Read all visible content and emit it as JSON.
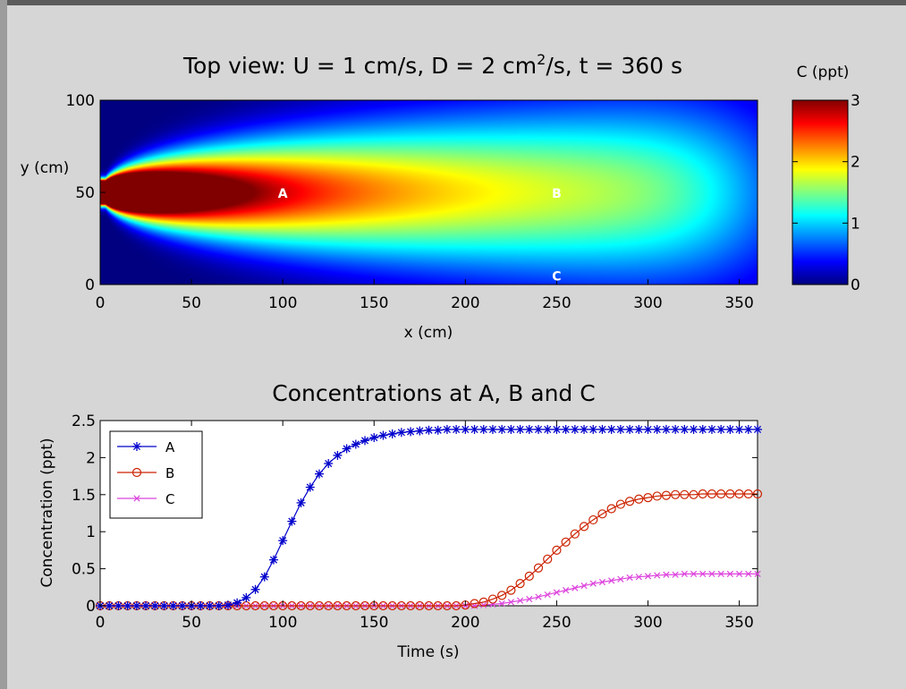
{
  "window": {
    "background": "#d6d6d6"
  },
  "chart_data": [
    {
      "type": "heatmap",
      "title_parts": {
        "main": "Top view: U = 1 cm/s, D = 2 cm",
        "sup": "2",
        "rest": "/s, t = 360 s"
      },
      "xlabel": "x (cm)",
      "ylabel": "y (cm)",
      "xlim": [
        0,
        360
      ],
      "ylim": [
        0,
        100
      ],
      "xticks": [
        0,
        50,
        100,
        150,
        200,
        250,
        300,
        350
      ],
      "yticks": [
        0,
        50,
        100
      ],
      "colormap": "jet",
      "clim": [
        0,
        3
      ],
      "model": {
        "U": 1,
        "D": 2,
        "t": 360,
        "source_y": 50,
        "units": "cm, s"
      },
      "colorbar": {
        "label": "C (ppt)",
        "ticks": [
          0,
          1,
          2,
          3
        ]
      },
      "points": [
        {
          "name": "A",
          "x": 100,
          "y": 50,
          "color": "#ffffff"
        },
        {
          "name": "B",
          "x": 250,
          "y": 50,
          "color": "#ffffff"
        },
        {
          "name": "C",
          "x": 250,
          "y": 5,
          "color": "#ffffff"
        }
      ]
    },
    {
      "type": "line",
      "title": "Concentrations at A, B and C",
      "xlabel": "Time (s)",
      "ylabel": "Concentration (ppt)",
      "xlim": [
        0,
        360
      ],
      "ylim": [
        0,
        2.5
      ],
      "xticks": [
        0,
        50,
        100,
        150,
        200,
        250,
        300,
        350
      ],
      "yticks": [
        0,
        0.5,
        1,
        1.5,
        2,
        2.5
      ],
      "grid": false,
      "legend": "top-left",
      "sample_interval": 5,
      "series": [
        {
          "name": "A",
          "color": "#0000cc",
          "marker": "asterisk",
          "values": [
            0,
            0,
            0,
            0,
            0,
            0,
            0,
            0,
            0,
            0,
            0,
            0,
            0,
            0,
            0.01,
            0.04,
            0.11,
            0.22,
            0.39,
            0.62,
            0.88,
            1.14,
            1.39,
            1.6,
            1.78,
            1.92,
            2.03,
            2.12,
            2.18,
            2.23,
            2.27,
            2.3,
            2.32,
            2.34,
            2.35,
            2.36,
            2.37,
            2.37,
            2.38,
            2.38,
            2.38,
            2.38,
            2.38,
            2.38,
            2.38,
            2.38,
            2.38,
            2.38,
            2.38,
            2.38,
            2.38,
            2.38,
            2.38,
            2.38,
            2.38,
            2.38,
            2.38,
            2.38,
            2.38,
            2.38,
            2.38,
            2.38,
            2.38,
            2.38,
            2.38,
            2.38,
            2.38,
            2.38,
            2.38,
            2.38,
            2.38,
            2.38,
            2.38
          ]
        },
        {
          "name": "B",
          "color": "#cc2200",
          "marker": "circle",
          "values": [
            0,
            0,
            0,
            0,
            0,
            0,
            0,
            0,
            0,
            0,
            0,
            0,
            0,
            0,
            0,
            0,
            0,
            0,
            0,
            0,
            0,
            0,
            0,
            0,
            0,
            0,
            0,
            0,
            0,
            0,
            0,
            0,
            0,
            0,
            0,
            0,
            0,
            0,
            0,
            0,
            0.01,
            0.03,
            0.05,
            0.09,
            0.14,
            0.21,
            0.3,
            0.4,
            0.51,
            0.63,
            0.75,
            0.86,
            0.97,
            1.07,
            1.16,
            1.24,
            1.31,
            1.37,
            1.41,
            1.44,
            1.46,
            1.48,
            1.49,
            1.5,
            1.5,
            1.5,
            1.51,
            1.51,
            1.51,
            1.51,
            1.51,
            1.51,
            1.51
          ]
        },
        {
          "name": "C",
          "color": "#dd44dd",
          "marker": "x",
          "values": [
            0,
            0,
            0,
            0,
            0,
            0,
            0,
            0,
            0,
            0,
            0,
            0,
            0,
            0,
            0,
            0,
            0,
            0,
            0,
            0,
            0,
            0,
            0,
            0,
            0,
            0,
            0,
            0,
            0,
            0,
            0,
            0,
            0,
            0,
            0,
            0,
            0,
            0,
            0,
            0,
            0,
            0,
            0.01,
            0.02,
            0.03,
            0.05,
            0.07,
            0.09,
            0.12,
            0.15,
            0.18,
            0.21,
            0.24,
            0.27,
            0.3,
            0.32,
            0.34,
            0.36,
            0.38,
            0.39,
            0.4,
            0.41,
            0.42,
            0.42,
            0.43,
            0.43,
            0.43,
            0.43,
            0.43,
            0.43,
            0.43,
            0.43,
            0.43
          ]
        }
      ]
    }
  ]
}
